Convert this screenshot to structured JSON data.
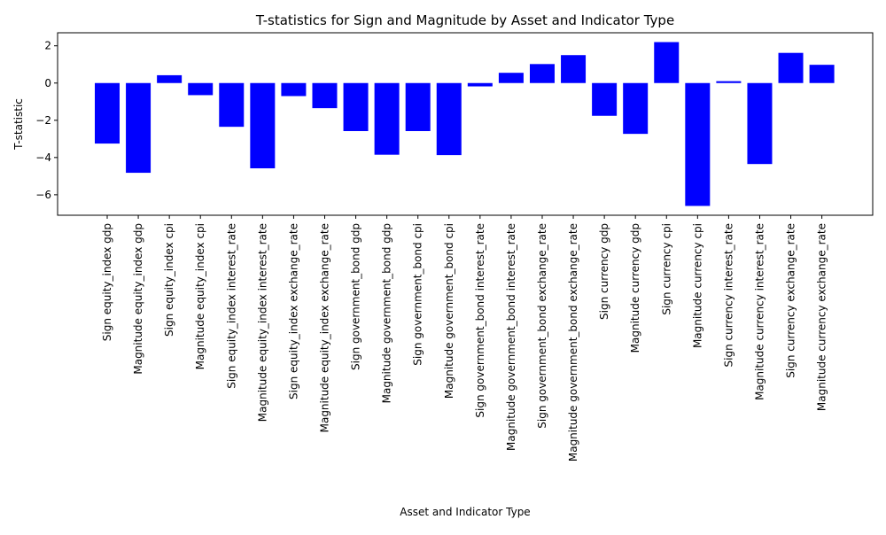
{
  "chart_data": {
    "type": "bar",
    "title": "T-statistics for Sign and Magnitude by Asset and Indicator Type",
    "xlabel": "Asset and Indicator Type",
    "ylabel": "T-statistic",
    "ylim": [
      -7.1,
      2.7
    ],
    "yticks": [
      -6,
      -4,
      -2,
      0,
      2
    ],
    "bar_color": "#0000ff",
    "grid": false,
    "legend": "none",
    "categories": [
      "Sign equity_index gdp",
      "Magnitude equity_index gdp",
      "Sign equity_index cpi",
      "Magnitude equity_index cpi",
      "Sign equity_index interest_rate",
      "Magnitude equity_index interest_rate",
      "Sign equity_index exchange_rate",
      "Magnitude equity_index exchange_rate",
      "Sign government_bond gdp",
      "Magnitude government_bond gdp",
      "Sign government_bond cpi",
      "Magnitude government_bond cpi",
      "Sign government_bond interest_rate",
      "Magnitude government_bond interest_rate",
      "Sign government_bond exchange_rate",
      "Magnitude government_bond exchange_rate",
      "Sign currency gdp",
      "Magnitude currency gdp",
      "Sign currency cpi",
      "Magnitude currency cpi",
      "Sign currency interest_rate",
      "Magnitude currency interest_rate",
      "Sign currency exchange_rate",
      "Magnitude currency exchange_rate"
    ],
    "values": [
      -3.25,
      -4.82,
      0.42,
      -0.65,
      -2.35,
      -4.58,
      -0.7,
      -1.35,
      -2.58,
      -3.85,
      -2.58,
      -3.87,
      -0.18,
      0.55,
      1.02,
      1.5,
      -1.76,
      -2.73,
      2.2,
      -6.6,
      0.1,
      -4.35,
      1.62,
      0.98
    ]
  }
}
